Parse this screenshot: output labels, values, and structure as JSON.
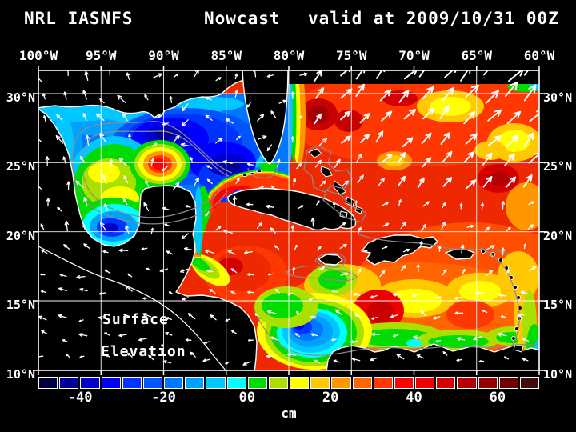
{
  "header": {
    "model": "NRL IASNFS",
    "product": "Nowcast",
    "valid": "valid at 2009/10/31 00Z"
  },
  "axes": {
    "lon_labels": [
      "100°W",
      "95°W",
      "90°W",
      "85°W",
      "80°W",
      "75°W",
      "70°W",
      "65°W",
      "60°W"
    ],
    "lat_labels": [
      "30°N",
      "25°N",
      "20°N",
      "15°N",
      "10°N"
    ]
  },
  "map_text": {
    "line1": "Surface",
    "line2": "Elevation"
  },
  "colorbar": {
    "unit": "cm",
    "min_cm": -50,
    "max_cm": 70,
    "step_cm": 5,
    "segment_colors": [
      "#000040",
      "#000099",
      "#0000CC",
      "#0000FF",
      "#0033FF",
      "#0055FF",
      "#0077FF",
      "#00A0FF",
      "#00C8FF",
      "#00FFFF",
      "#00DC00",
      "#AAE000",
      "#FFFF00",
      "#FFC800",
      "#FF9600",
      "#FF6400",
      "#FF3700",
      "#FF0000",
      "#ED0000",
      "#D40000",
      "#B40000",
      "#920000",
      "#6E0000",
      "#430C0C"
    ],
    "ticks": [
      {
        "label": "-40",
        "value": -40
      },
      {
        "label": "-20",
        "value": -20
      },
      {
        "label": "00",
        "value": 0
      },
      {
        "label": "20",
        "value": 20
      },
      {
        "label": "40",
        "value": 40
      },
      {
        "label": "60",
        "value": 60
      }
    ]
  },
  "colors": {
    "background": "#000000",
    "text": "#FFFFFF",
    "grid": "#FFFFFF",
    "coastline": "#FFFFFF",
    "bathymetry_contour": "#8C8C8C",
    "land": "#000000",
    "gulf_base": "#0077FF",
    "caribbean_base": "#EE2800"
  }
}
